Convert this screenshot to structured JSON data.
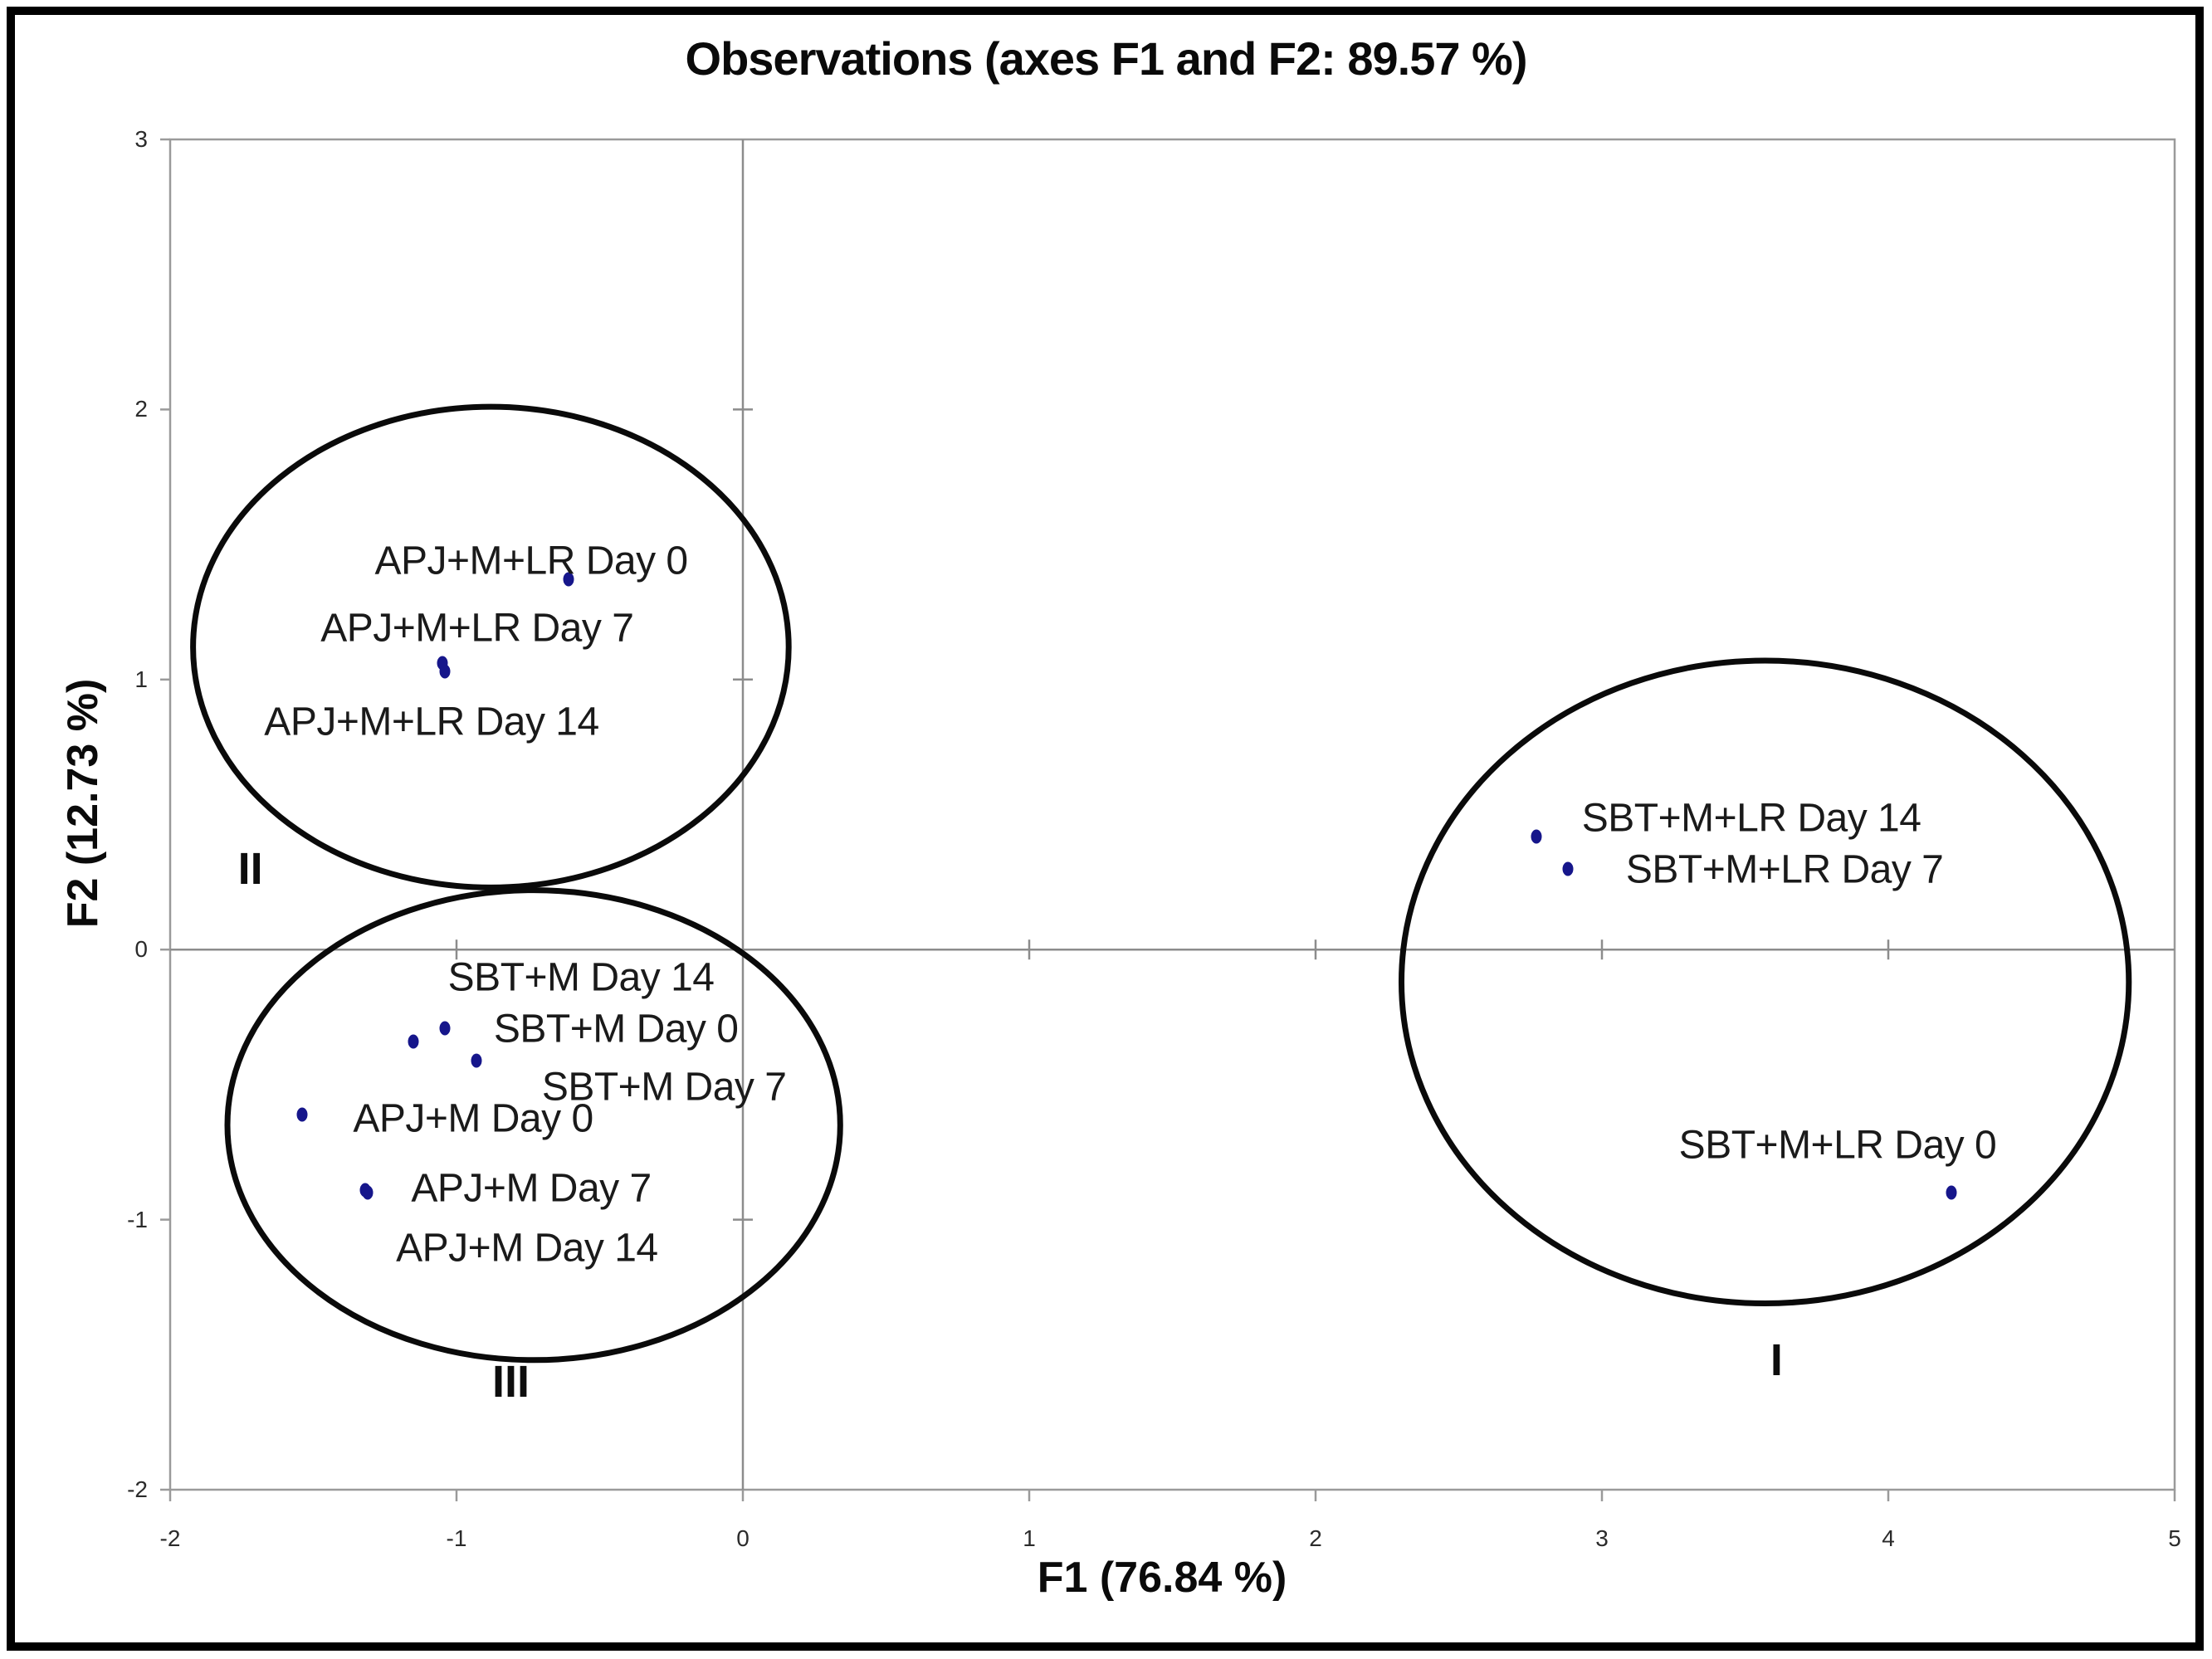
{
  "figure": {
    "background": "#ffffff",
    "border_color": "#000000"
  },
  "chart_data": {
    "type": "scatter",
    "title": "Observations (axes F1 and F2: 89.57 %)",
    "xlabel": "F1 (76.84 %)",
    "ylabel": "F2 (12.73 %)",
    "xlim": [
      -2,
      5
    ],
    "ylim": [
      -2,
      3
    ],
    "x_ticks": [
      -2,
      -1,
      0,
      1,
      2,
      3,
      4,
      5
    ],
    "y_ticks": [
      3,
      2,
      1,
      0,
      -1,
      -2
    ],
    "grid": false,
    "legend": false,
    "point_color": "#16168B",
    "axis_color": "#8c8c8c",
    "frame_color": "#9a9a9a",
    "ellipse_color": "#0a0a0a",
    "series": [
      {
        "name": "observations",
        "points": [
          {
            "label": "APJ+M+LR Day 0",
            "x": -0.61,
            "y": 1.37,
            "label_pos": [
              -0.739,
              1.439
            ]
          },
          {
            "label": "APJ+M+LR Day 7",
            "x": -1.05,
            "y": 1.06,
            "label_pos": [
              -0.928,
              1.19
            ]
          },
          {
            "label": "APJ+M+LR Day 14",
            "x": -1.04,
            "y": 1.03,
            "label_pos": [
              -1.087,
              0.842
            ]
          },
          {
            "label": "SBT+M Day 14",
            "x": -1.15,
            "y": -0.34,
            "label_pos": [
              -0.565,
              -0.105
            ]
          },
          {
            "label": "SBT+M Day 0",
            "x": -1.04,
            "y": -0.29,
            "label_pos": [
              -0.443,
              -0.295
            ]
          },
          {
            "label": "SBT+M Day 7",
            "x": -0.93,
            "y": -0.41,
            "label_pos": [
              -0.275,
              -0.51
            ]
          },
          {
            "label": "APJ+M Day 0",
            "x": -1.54,
            "y": -0.61,
            "label_pos": [
              -0.942,
              -0.627
            ]
          },
          {
            "label": "APJ+M Day 7",
            "x": -1.32,
            "y": -0.89,
            "label_pos": [
              -0.739,
              -0.885
            ]
          },
          {
            "label": "APJ+M Day 14",
            "x": -1.31,
            "y": -0.9,
            "label_pos": [
              -0.754,
              -1.107
            ]
          },
          {
            "label": "SBT+M+LR Day 14",
            "x": 2.77,
            "y": 0.42,
            "label_pos": [
              3.522,
              0.486
            ]
          },
          {
            "label": "SBT+M+LR Day 7",
            "x": 2.88,
            "y": 0.3,
            "label_pos": [
              3.638,
              0.295
            ]
          },
          {
            "label": "SBT+M+LR Day 0",
            "x": 4.22,
            "y": -0.9,
            "label_pos": [
              3.823,
              -0.726
            ]
          }
        ]
      }
    ],
    "cluster_ellipses": [
      {
        "name": "I",
        "cx": 3.57,
        "cy": -0.12,
        "rx": 1.27,
        "ry": 1.19,
        "label_x": 3.61,
        "label_y": -1.52
      },
      {
        "name": "II",
        "cx": -0.88,
        "cy": 1.12,
        "rx": 1.04,
        "ry": 0.89,
        "label_x": -1.72,
        "label_y": 0.3
      },
      {
        "name": "III",
        "cx": -0.73,
        "cy": -0.65,
        "rx": 1.07,
        "ry": 0.87,
        "label_x": -0.81,
        "label_y": -1.6
      }
    ]
  }
}
